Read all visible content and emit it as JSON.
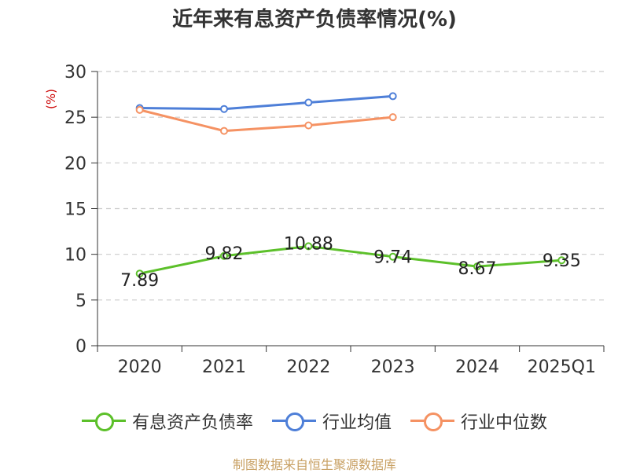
{
  "title": "近年来有息资产负债率情况(%)",
  "source": "制图数据来自恒生聚源数据库",
  "chart_data": {
    "type": "line",
    "categories": [
      "2020",
      "2021",
      "2022",
      "2023",
      "2024",
      "2025Q1"
    ],
    "ylabel": "(%)",
    "ylim": [
      0,
      30
    ],
    "yticks": [
      "0",
      "5",
      "10",
      "15",
      "20",
      "25",
      "30"
    ],
    "grid": true,
    "legend_position": "bottom",
    "series": [
      {
        "name": "有息资产负债率",
        "color": "#5cc02a",
        "values": [
          7.89,
          9.82,
          10.88,
          9.74,
          8.67,
          9.35
        ],
        "labels": [
          "7.89",
          "9.82",
          "10.88",
          "9.74",
          "8.67",
          "9.35"
        ]
      },
      {
        "name": "行业均值",
        "color": "#4e7fd8",
        "values": [
          26.0,
          25.9,
          26.6,
          27.3,
          null,
          null
        ]
      },
      {
        "name": "行业中位数",
        "color": "#f59263",
        "values": [
          25.8,
          23.5,
          24.1,
          25.0,
          null,
          null
        ]
      }
    ]
  }
}
